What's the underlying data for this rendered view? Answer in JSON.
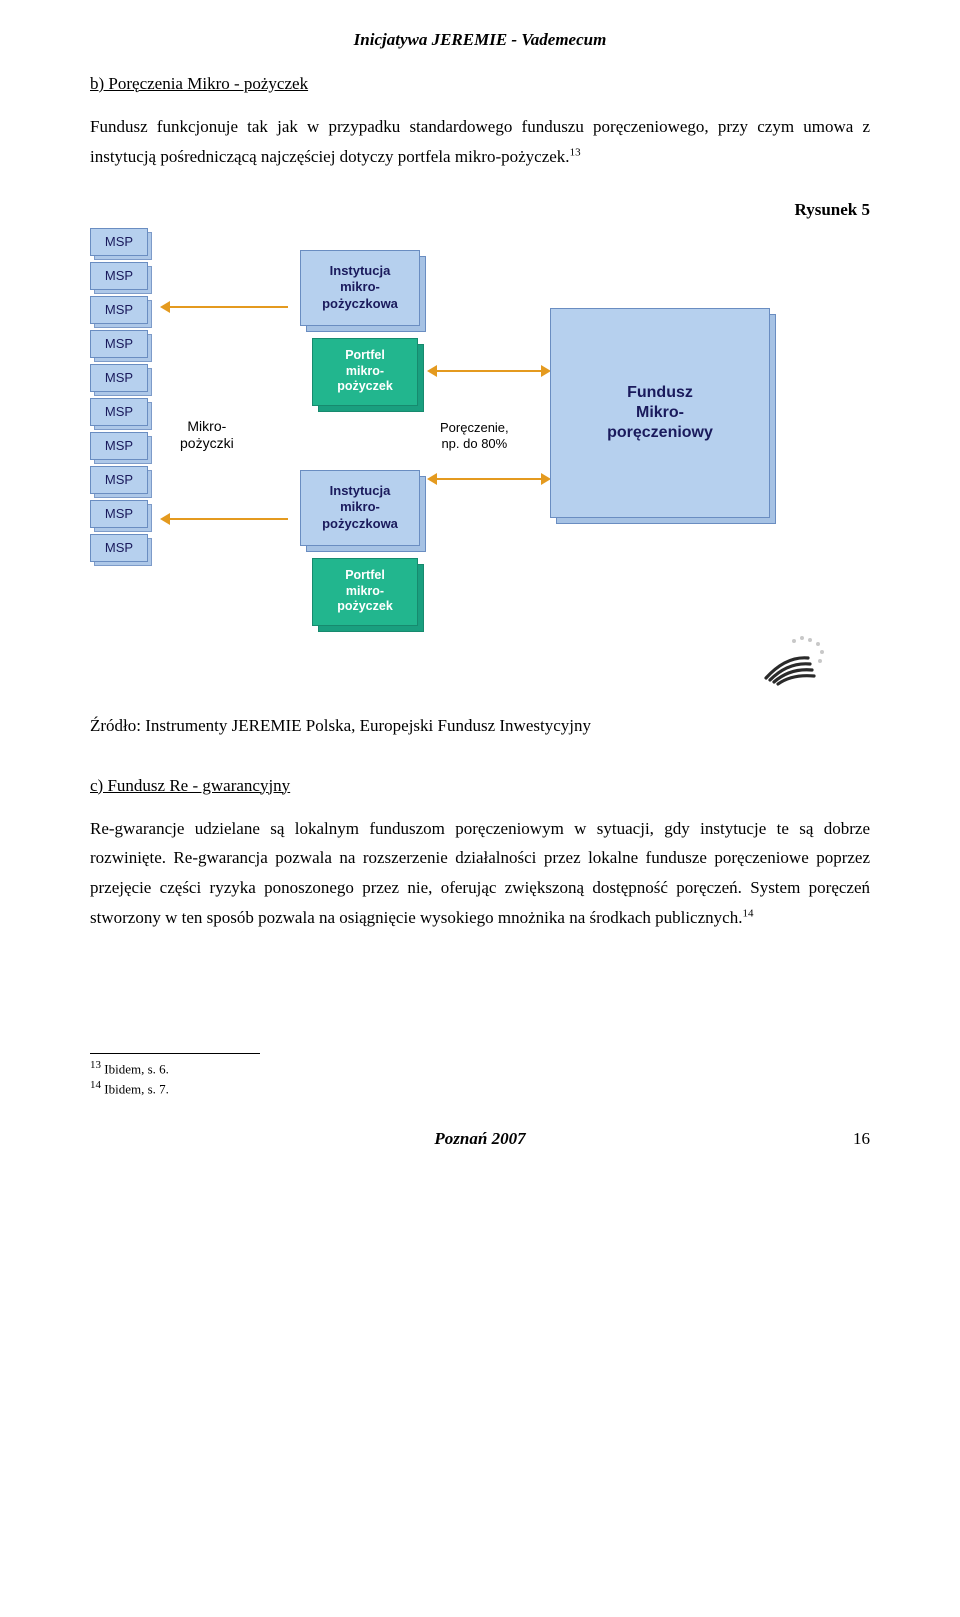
{
  "header": {
    "title": "Inicjatywa JEREMIE - Vademecum"
  },
  "section_b": {
    "heading": "b) Poręczenia Mikro - pożyczek",
    "p1_a": "Fundusz funkcjonuje tak jak w przypadku standardowego funduszu poręczeniowego, przy czym umowa z instytucją pośredniczącą najczęściej dotyczy portfela ",
    "p1_b": "mikro-pożyczek.",
    "p1_sup": "13"
  },
  "figure5": {
    "caption": "Rysunek 5",
    "source": "Źródło: Instrumenty JEREMIE Polska, Europejski Fundusz Inwestycyjny",
    "msp_label": "MSP",
    "msp_count": 10,
    "mikro_label_l1": "Mikro-",
    "mikro_label_l2": "pożyczki",
    "inst_l1": "Instytucja",
    "inst_l2": "mikro-",
    "inst_l3": "pożyczkowa",
    "portf_l1": "Portfel",
    "portf_l2": "mikro-",
    "portf_l3": "pożyczek",
    "porecz_l1": "Poręczenie,",
    "porecz_l2": "np. do 80%",
    "fund_l1": "Fundusz",
    "fund_l2": "Mikro-",
    "fund_l3": "poręczeniowy",
    "colors": {
      "msp_bg": "#b6d0ee",
      "inst_bg": "#b6d0ee",
      "portf_bg": "#22b68e",
      "portf_text": "#ffffff",
      "fund_bg": "#b6d0ee",
      "arrow": "#e49a1f",
      "border": "#6a8dc1",
      "text_blue": "#1a1a5c"
    }
  },
  "section_c": {
    "heading": "c) Fundusz Re - gwarancyjny",
    "p1": "Re-gwarancje udzielane są lokalnym funduszom poręczeniowym w sytuacji, gdy instytucje te są dobrze rozwinięte. Re-gwarancja pozwala na rozszerzenie działalności przez lokalne fundusze poręczeniowe poprzez przejęcie części ryzyka ponoszonego przez nie, oferując zwiększoną dostępność poręczeń. System poręczeń stworzony w ten sposób pozwala na osiągnięcie wysokiego mnożnika na środkach publicznych.",
    "sup": "14"
  },
  "footnotes": {
    "f13_sup": "13",
    "f13": " Ibidem, s. 6.",
    "f14_sup": "14",
    "f14": " Ibidem, s. 7."
  },
  "footer": {
    "city": "Poznań 2007",
    "page": "16"
  }
}
